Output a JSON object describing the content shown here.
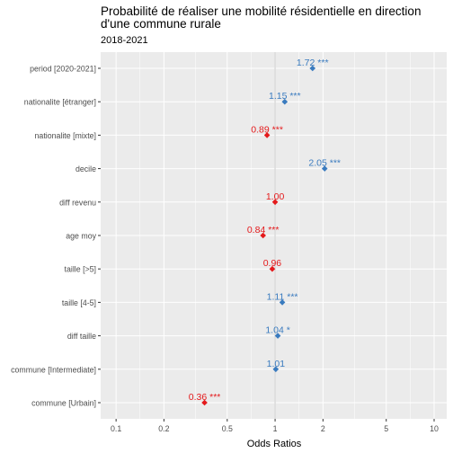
{
  "chart_data": {
    "type": "scatter",
    "title": "Probabilité de réaliser une mobilité résidentielle en direction\nd'une commune rurale",
    "subtitle": "2018-2021",
    "xlabel": "Odds Ratios",
    "ylabel": "",
    "x_scale": "log",
    "xlim": [
      0.08,
      12
    ],
    "x_ticks": [
      0.1,
      0.2,
      0.5,
      1,
      2,
      5,
      10
    ],
    "x_tick_labels": [
      "0.1",
      "0.2",
      "0.5",
      "1",
      "2",
      "5",
      "10"
    ],
    "reference_line": 1,
    "grid": true,
    "colors": {
      "positive": "#3a7bbf",
      "negative": "#e41a1c",
      "panel": "#ebebeb",
      "grid": "#ffffff"
    },
    "points": [
      {
        "term": "period [2020-2021]",
        "value": 1.72,
        "label": "1.72 ***",
        "direction": "positive"
      },
      {
        "term": "nationalite [étranger]",
        "value": 1.15,
        "label": "1.15 ***",
        "direction": "positive"
      },
      {
        "term": "nationalite [mixte]",
        "value": 0.89,
        "label": "0.89 ***",
        "direction": "negative"
      },
      {
        "term": "decile",
        "value": 2.05,
        "label": "2.05 ***",
        "direction": "positive"
      },
      {
        "term": "diff revenu",
        "value": 1.0,
        "label": "1.00",
        "direction": "negative"
      },
      {
        "term": "age moy",
        "value": 0.84,
        "label": "0.84 ***",
        "direction": "negative"
      },
      {
        "term": "taille [>5]",
        "value": 0.96,
        "label": "0.96",
        "direction": "negative"
      },
      {
        "term": "taille [4-5]",
        "value": 1.11,
        "label": "1.11 ***",
        "direction": "positive"
      },
      {
        "term": "diff taille",
        "value": 1.04,
        "label": "1.04 *",
        "direction": "positive"
      },
      {
        "term": "commune [Intermediate]",
        "value": 1.01,
        "label": "1.01",
        "direction": "positive"
      },
      {
        "term": "commune [Urbain]",
        "value": 0.36,
        "label": "0.36 ***",
        "direction": "negative"
      }
    ]
  }
}
